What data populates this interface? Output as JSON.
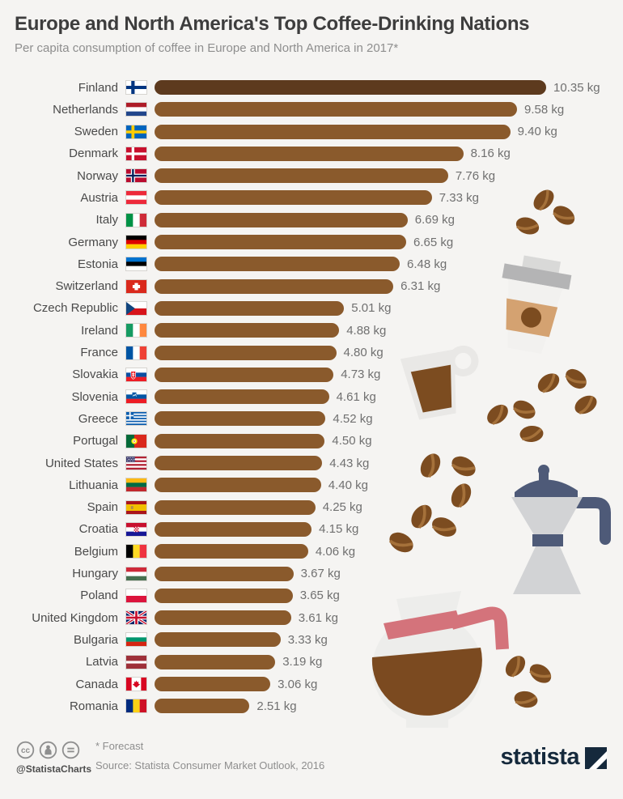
{
  "header": {
    "title": "Europe and North America's Top Coffee-Drinking Nations",
    "subtitle": "Per capita consumption of coffee in Europe and North America in 2017*"
  },
  "chart_data": {
    "type": "bar",
    "orientation": "horizontal",
    "title": "Europe and North America's Top Coffee-Drinking Nations",
    "unit": "kg",
    "xlim": [
      0,
      10.35
    ],
    "highlight_first_bar": true,
    "bar_color": "#8a5a2c",
    "highlight_bar_color": "#5d3a1e",
    "rows": [
      {
        "country": "Finland",
        "flag": "fi",
        "value": 10.35,
        "label": "10.35 kg"
      },
      {
        "country": "Netherlands",
        "flag": "nl",
        "value": 9.58,
        "label": "9.58 kg"
      },
      {
        "country": "Sweden",
        "flag": "se",
        "value": 9.4,
        "label": "9.40 kg"
      },
      {
        "country": "Denmark",
        "flag": "dk",
        "value": 8.16,
        "label": "8.16 kg"
      },
      {
        "country": "Norway",
        "flag": "no",
        "value": 7.76,
        "label": "7.76 kg"
      },
      {
        "country": "Austria",
        "flag": "at",
        "value": 7.33,
        "label": "7.33 kg"
      },
      {
        "country": "Italy",
        "flag": "it",
        "value": 6.69,
        "label": "6.69 kg"
      },
      {
        "country": "Germany",
        "flag": "de",
        "value": 6.65,
        "label": "6.65 kg"
      },
      {
        "country": "Estonia",
        "flag": "ee",
        "value": 6.48,
        "label": "6.48 kg"
      },
      {
        "country": "Switzerland",
        "flag": "ch",
        "value": 6.31,
        "label": "6.31 kg"
      },
      {
        "country": "Czech Republic",
        "flag": "cz",
        "value": 5.01,
        "label": "5.01 kg"
      },
      {
        "country": "Ireland",
        "flag": "ie",
        "value": 4.88,
        "label": "4.88 kg"
      },
      {
        "country": "France",
        "flag": "fr",
        "value": 4.8,
        "label": "4.80 kg"
      },
      {
        "country": "Slovakia",
        "flag": "sk",
        "value": 4.73,
        "label": "4.73 kg"
      },
      {
        "country": "Slovenia",
        "flag": "si",
        "value": 4.61,
        "label": "4.61 kg"
      },
      {
        "country": "Greece",
        "flag": "gr",
        "value": 4.52,
        "label": "4.52 kg"
      },
      {
        "country": "Portugal",
        "flag": "pt",
        "value": 4.5,
        "label": "4.50 kg"
      },
      {
        "country": "United States",
        "flag": "us",
        "value": 4.43,
        "label": "4.43 kg"
      },
      {
        "country": "Lithuania",
        "flag": "lt",
        "value": 4.4,
        "label": "4.40 kg"
      },
      {
        "country": "Spain",
        "flag": "es",
        "value": 4.25,
        "label": "4.25 kg"
      },
      {
        "country": "Croatia",
        "flag": "hr",
        "value": 4.15,
        "label": "4.15 kg"
      },
      {
        "country": "Belgium",
        "flag": "be",
        "value": 4.06,
        "label": "4.06 kg"
      },
      {
        "country": "Hungary",
        "flag": "hu",
        "value": 3.67,
        "label": "3.67 kg"
      },
      {
        "country": "Poland",
        "flag": "pl",
        "value": 3.65,
        "label": "3.65 kg"
      },
      {
        "country": "United Kingdom",
        "flag": "gb",
        "value": 3.61,
        "label": "3.61 kg"
      },
      {
        "country": "Bulgaria",
        "flag": "bg",
        "value": 3.33,
        "label": "3.33 kg"
      },
      {
        "country": "Latvia",
        "flag": "lv",
        "value": 3.19,
        "label": "3.19 kg"
      },
      {
        "country": "Canada",
        "flag": "ca",
        "value": 3.06,
        "label": "3.06 kg"
      },
      {
        "country": "Romania",
        "flag": "ro",
        "value": 2.51,
        "label": "2.51 kg"
      }
    ]
  },
  "footer": {
    "forecast_note": "* Forecast",
    "source": "Source: Statista Consumer Market Outlook, 2016",
    "handle": "@StatistaCharts",
    "brand": "statista"
  },
  "colors": {
    "background": "#f5f4f2",
    "title": "#3d3d3d",
    "subtitle": "#8e8e8e",
    "country_label": "#4a4a4a",
    "value_label": "#707070",
    "bean_brown": "#7c4c20",
    "statista_navy": "#15293c"
  }
}
